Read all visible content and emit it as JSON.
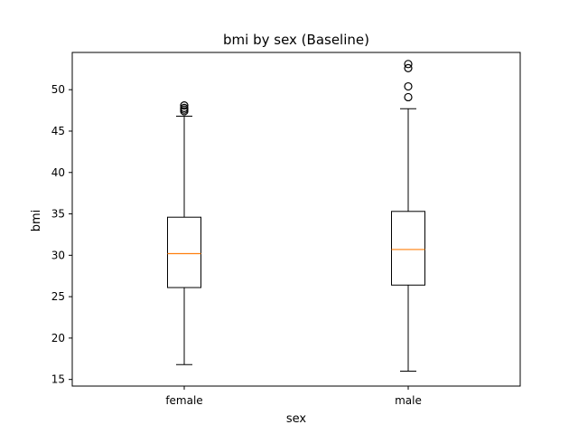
{
  "chart_data": {
    "type": "box",
    "title": "bmi by sex (Baseline)",
    "xlabel": "sex",
    "ylabel": "bmi",
    "categories": [
      "female",
      "male"
    ],
    "ylim": [
      14.2,
      54.5
    ],
    "yticks": [
      15,
      20,
      25,
      30,
      35,
      40,
      45,
      50
    ],
    "grid": false,
    "boxes": [
      {
        "category": "female",
        "whisker_low": 16.8,
        "q1": 26.1,
        "median": 30.2,
        "q3": 34.6,
        "whisker_high": 46.8,
        "outliers": [
          47.4,
          47.6,
          47.8,
          48.1
        ]
      },
      {
        "category": "male",
        "whisker_low": 16.0,
        "q1": 26.4,
        "median": 30.7,
        "q3": 35.3,
        "whisker_high": 47.7,
        "outliers": [
          49.1,
          50.4,
          52.6,
          53.1
        ]
      }
    ],
    "colors": {
      "box": "#000000",
      "median": "#ff7f0e",
      "outlier": "#000000"
    }
  }
}
